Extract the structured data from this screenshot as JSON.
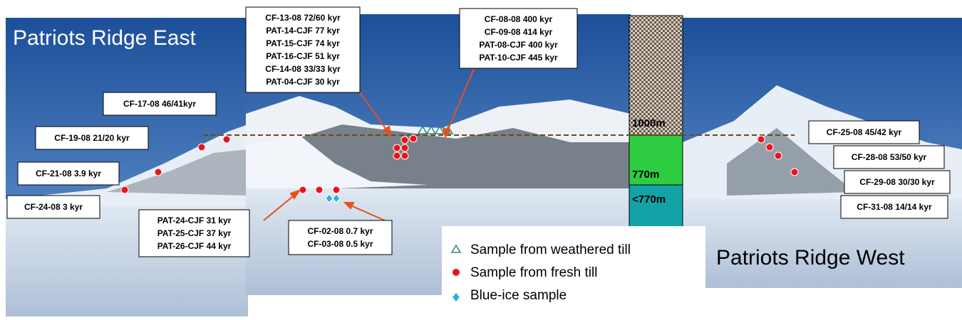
{
  "titles": {
    "east": "Patriots Ridge East",
    "west": "Patriots Ridge West"
  },
  "elevation": [
    "1000m",
    "770m",
    "<770m"
  ],
  "legend": [
    "Sample from weathered till",
    "Sample from fresh till",
    "Blue-ice sample"
  ],
  "labels": [
    [
      "CF-17-08 46/41kyr"
    ],
    [
      "CF-19-08 21/20 kyr"
    ],
    [
      "CF-21-08 3.9 kyr"
    ],
    [
      "CF-24-08 3 kyr"
    ],
    [
      "PAT-24-CJF 31 kyr",
      "PAT-25-CJF 37 kyr",
      "PAT-26-CJF 44 kyr"
    ],
    [
      "CF-13-08 72/60 kyr",
      "PAT-14-CJF 77 kyr",
      "PAT-15-CJF 74 kyr",
      "PAT-16-CJF 51 kyr",
      "CF-14-08 33/33 kyr",
      "PAT-04-CJF 30 kyr"
    ],
    [
      "CF-08-08 400 kyr",
      "CF-09-08 414 kyr",
      "PAT-08-CJF 400 kyr",
      "PAT-10-CJF 445 kyr"
    ],
    [
      "CF-02-08 0.7 kyr",
      "CF-03-08 0.5 kyr"
    ],
    [
      "CF-25-08 45/42 kyr"
    ],
    [
      "CF-28-08 53/50 kyr"
    ],
    [
      "CF-29-08 30/30 kyr"
    ],
    [
      "CF-31-08 14/14 kyr"
    ]
  ]
}
